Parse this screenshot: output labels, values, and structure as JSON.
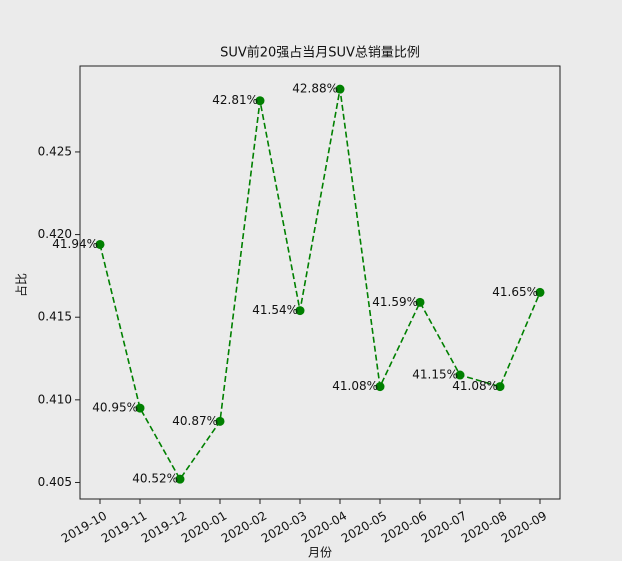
{
  "chart_data": {
    "type": "line",
    "title": "SUV前20强占当月SUV总销量比例",
    "x_label": "月份",
    "y_label": "占比",
    "categories": [
      "2019-10",
      "2019-11",
      "2019-12",
      "2020-01",
      "2020-02",
      "2020-03",
      "2020-04",
      "2020-05",
      "2020-06",
      "2020-07",
      "2020-08",
      "2020-09"
    ],
    "values": [
      0.4194,
      0.4095,
      0.4052,
      0.4087,
      0.4281,
      0.4154,
      0.4288,
      0.4108,
      0.4159,
      0.4115,
      0.4108,
      0.4165
    ],
    "value_labels": [
      "41.94%",
      "40.95%",
      "40.52%",
      "40.87%",
      "42.81%",
      "41.54%",
      "42.88%",
      "41.08%",
      "41.59%",
      "41.15%",
      "41.08%",
      "41.65%"
    ],
    "color": "green",
    "line_style": "dashed",
    "ylim": [
      0.404,
      0.4302
    ],
    "yticks": [
      0.405,
      {
        "value": 0.41,
        "label": "0.410"
      },
      0.415,
      {
        "value": 0.42,
        "label": "0.420"
      },
      0.425
    ],
    "grid": false
  }
}
